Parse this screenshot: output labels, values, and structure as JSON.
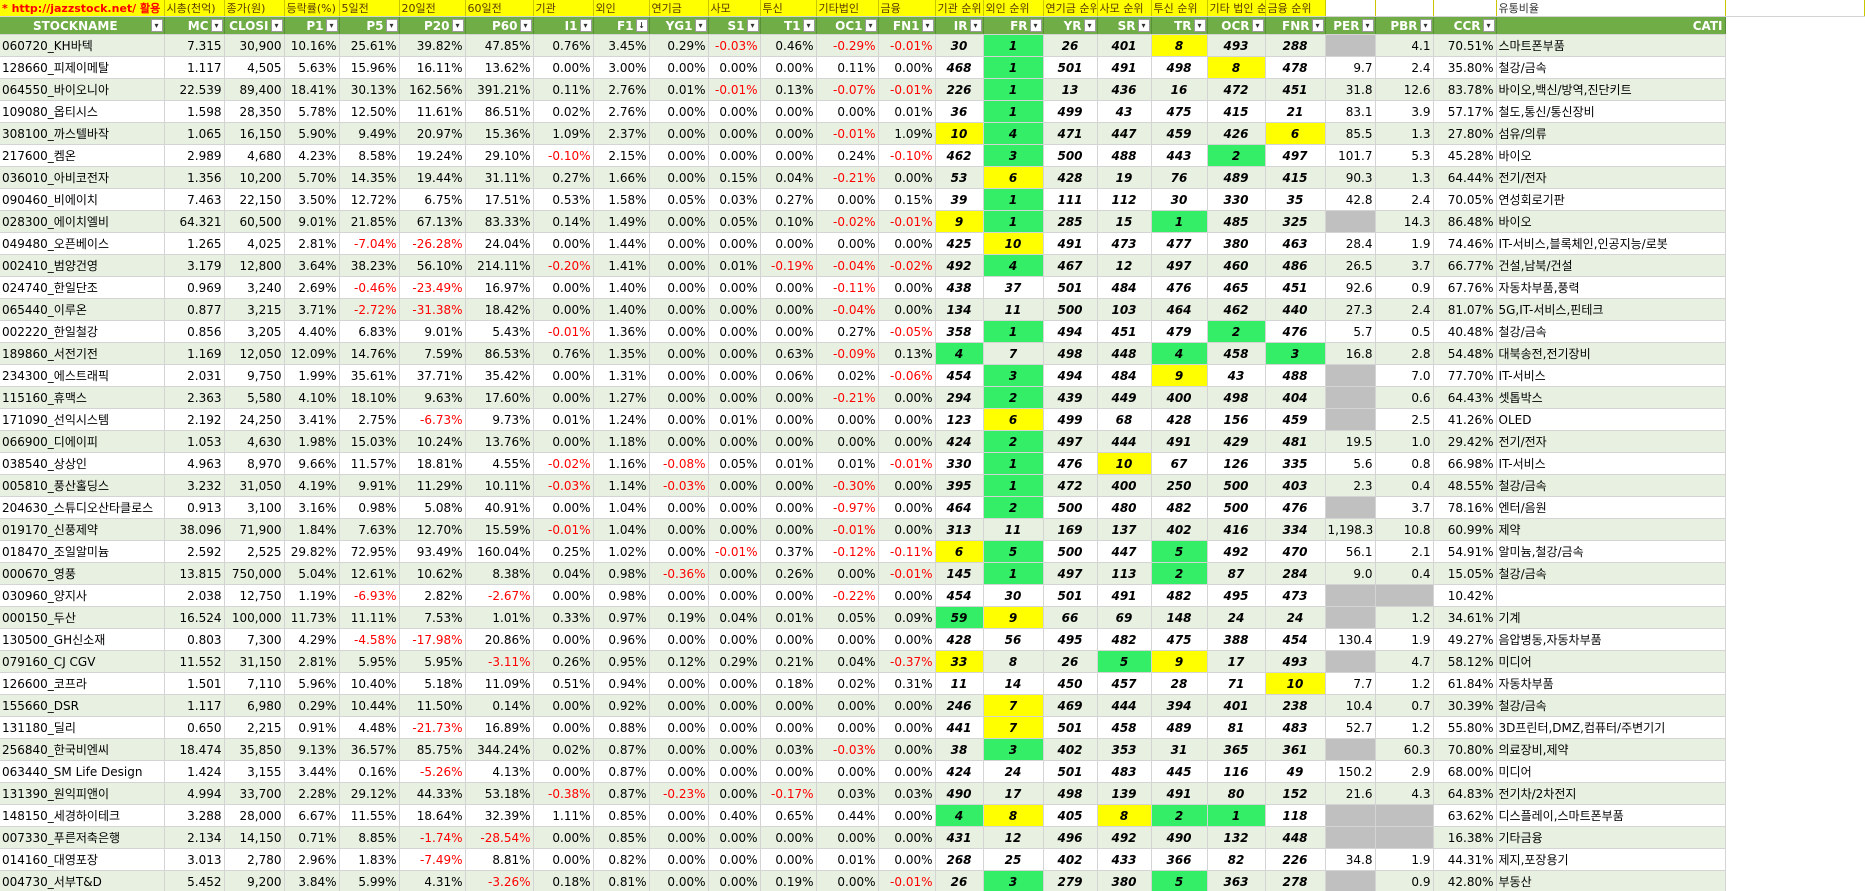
{
  "top_labels": [
    "* http://jazzstock.net/ 활용",
    "시총(천억)",
    "종가(원)",
    "등락률(%)",
    "5일전",
    "20일전",
    "60일전",
    "기관",
    "외인",
    "연기금",
    "사모",
    "투신",
    "기타법인",
    "금융",
    "기관 순위",
    "외인 순위",
    "연기금 순위",
    "사모 순위",
    "투신 순위",
    "기타 법인 순위",
    "금융 순위",
    "",
    "",
    "",
    "유통비율",
    ""
  ],
  "headers": [
    "STOCKNAME",
    "MC",
    "CLOSE",
    "P1",
    "P5",
    "P20",
    "P60",
    "I1",
    "F1",
    "YG1",
    "S1",
    "T1",
    "OC1",
    "FN1",
    "IR",
    "FR",
    "YR",
    "SR",
    "TR",
    "OCR",
    "FNR",
    "PER",
    "PBR",
    "CCR",
    "CATEGORY"
  ],
  "header_visible": [
    "STOCKNAME",
    "MC",
    "CLOSI",
    "P1",
    "P5",
    "P20",
    "P60",
    "I1",
    "F1",
    "YG1",
    "S1",
    "T1",
    "OC1",
    "FN1",
    "IR",
    "FR",
    "YR",
    "SR",
    "TR",
    "OCR",
    "FNR",
    "PER",
    "PBR",
    "CCR",
    "CATI"
  ],
  "sort_indicator": "↓",
  "dropdown_glyph": "▾",
  "colors": {
    "header_green": "#70ad47",
    "band": "#e8f1e1",
    "yellow": "#ffff00",
    "green": "#33ee66",
    "gray": "#c0c0c0",
    "red": "#ff0000"
  },
  "rows": [
    [
      "060720_KH바텍",
      "7.315",
      "30,900",
      "10.16%",
      "25.61%",
      "39.82%",
      "47.85%",
      "0.76%",
      "3.45%",
      "0.29%",
      "-0.03%",
      "0.46%",
      "-0.29%",
      "-0.01%",
      "30",
      "1",
      "26",
      "401",
      "8",
      "493",
      "288",
      "",
      "4.1",
      "70.51%",
      "스마트폰부품"
    ],
    [
      "128660_피제이메탈",
      "1.117",
      "4,505",
      "5.63%",
      "15.96%",
      "16.11%",
      "13.62%",
      "0.00%",
      "3.00%",
      "0.00%",
      "0.00%",
      "0.00%",
      "0.11%",
      "0.00%",
      "468",
      "1",
      "501",
      "491",
      "498",
      "8",
      "478",
      "9.7",
      "2.4",
      "35.80%",
      "철강/금속"
    ],
    [
      "064550_바이오니아",
      "22.539",
      "89,400",
      "18.41%",
      "30.13%",
      "162.56%",
      "391.21%",
      "0.11%",
      "2.76%",
      "0.01%",
      "-0.01%",
      "0.13%",
      "-0.07%",
      "-0.01%",
      "226",
      "1",
      "13",
      "436",
      "16",
      "472",
      "451",
      "31.8",
      "12.6",
      "83.78%",
      "바이오,백신/방역,진단키트"
    ],
    [
      "109080_옵티시스",
      "1.598",
      "28,350",
      "5.78%",
      "12.50%",
      "11.61%",
      "86.51%",
      "0.02%",
      "2.76%",
      "0.00%",
      "0.00%",
      "0.00%",
      "0.00%",
      "0.01%",
      "36",
      "1",
      "499",
      "43",
      "475",
      "415",
      "21",
      "83.1",
      "3.9",
      "57.17%",
      "철도,통신/통신장비"
    ],
    [
      "308100_까스텔바작",
      "1.065",
      "16,150",
      "5.90%",
      "9.49%",
      "20.97%",
      "15.36%",
      "1.09%",
      "2.37%",
      "0.00%",
      "0.00%",
      "0.00%",
      "-0.01%",
      "1.09%",
      "10",
      "4",
      "471",
      "447",
      "459",
      "426",
      "6",
      "85.5",
      "1.3",
      "27.80%",
      "섬유/의류"
    ],
    [
      "217600_켐온",
      "2.989",
      "4,680",
      "4.23%",
      "8.58%",
      "19.24%",
      "29.10%",
      "-0.10%",
      "2.15%",
      "0.00%",
      "0.00%",
      "0.00%",
      "0.24%",
      "-0.10%",
      "462",
      "3",
      "500",
      "488",
      "443",
      "2",
      "497",
      "101.7",
      "5.3",
      "45.28%",
      "바이오"
    ],
    [
      "036010_아비코전자",
      "1.356",
      "10,200",
      "5.70%",
      "14.35%",
      "19.44%",
      "31.11%",
      "0.27%",
      "1.66%",
      "0.00%",
      "0.15%",
      "0.04%",
      "-0.21%",
      "0.00%",
      "53",
      "6",
      "428",
      "19",
      "76",
      "489",
      "415",
      "90.3",
      "1.3",
      "64.44%",
      "전기/전자"
    ],
    [
      "090460_비에이치",
      "7.463",
      "22,150",
      "3.50%",
      "12.72%",
      "6.75%",
      "17.51%",
      "0.53%",
      "1.58%",
      "0.05%",
      "0.03%",
      "0.27%",
      "0.00%",
      "0.15%",
      "39",
      "1",
      "111",
      "112",
      "30",
      "330",
      "35",
      "42.8",
      "2.4",
      "70.05%",
      "연성회로기판"
    ],
    [
      "028300_에이치엘비",
      "64.321",
      "60,500",
      "9.01%",
      "21.85%",
      "67.13%",
      "83.33%",
      "0.14%",
      "1.49%",
      "0.00%",
      "0.05%",
      "0.10%",
      "-0.02%",
      "-0.01%",
      "9",
      "1",
      "285",
      "15",
      "1",
      "485",
      "325",
      "",
      "14.3",
      "86.48%",
      "바이오"
    ],
    [
      "049480_오픈베이스",
      "1.265",
      "4,025",
      "2.81%",
      "-7.04%",
      "-26.28%",
      "24.04%",
      "0.00%",
      "1.44%",
      "0.00%",
      "0.00%",
      "0.00%",
      "0.00%",
      "0.00%",
      "425",
      "10",
      "491",
      "473",
      "477",
      "380",
      "463",
      "28.4",
      "1.9",
      "74.46%",
      "IT-서비스,블록체인,인공지능/로봇"
    ],
    [
      "002410_범양건영",
      "3.179",
      "12,800",
      "3.64%",
      "38.23%",
      "56.10%",
      "214.11%",
      "-0.20%",
      "1.41%",
      "0.00%",
      "0.01%",
      "-0.19%",
      "-0.04%",
      "-0.02%",
      "492",
      "4",
      "467",
      "12",
      "497",
      "460",
      "486",
      "26.5",
      "3.7",
      "66.77%",
      "건설,남북/건설"
    ],
    [
      "024740_한일단조",
      "0.969",
      "3,240",
      "2.69%",
      "-0.46%",
      "-23.49%",
      "16.97%",
      "0.00%",
      "1.40%",
      "0.00%",
      "0.00%",
      "0.00%",
      "-0.11%",
      "0.00%",
      "438",
      "37",
      "501",
      "484",
      "476",
      "465",
      "451",
      "92.6",
      "0.9",
      "67.76%",
      "자동차부품,풍력"
    ],
    [
      "065440_이루온",
      "0.877",
      "3,215",
      "3.71%",
      "-2.72%",
      "-31.38%",
      "18.42%",
      "0.00%",
      "1.40%",
      "0.00%",
      "0.00%",
      "0.00%",
      "-0.04%",
      "0.00%",
      "134",
      "11",
      "500",
      "103",
      "464",
      "462",
      "440",
      "27.3",
      "2.4",
      "81.07%",
      "5G,IT-서비스,핀테크"
    ],
    [
      "002220_한일철강",
      "0.856",
      "3,205",
      "4.40%",
      "6.83%",
      "9.01%",
      "5.43%",
      "-0.01%",
      "1.36%",
      "0.00%",
      "0.00%",
      "0.00%",
      "0.27%",
      "-0.05%",
      "358",
      "1",
      "494",
      "451",
      "479",
      "2",
      "476",
      "5.7",
      "0.5",
      "40.48%",
      "철강/금속"
    ],
    [
      "189860_서전기전",
      "1.169",
      "12,050",
      "12.09%",
      "14.76%",
      "7.59%",
      "86.53%",
      "0.76%",
      "1.35%",
      "0.00%",
      "0.00%",
      "0.63%",
      "-0.09%",
      "0.13%",
      "4",
      "7",
      "498",
      "448",
      "4",
      "458",
      "3",
      "16.8",
      "2.8",
      "54.48%",
      "대북송전,전기장비"
    ],
    [
      "234300_에스트래픽",
      "2.031",
      "9,750",
      "1.99%",
      "35.61%",
      "37.71%",
      "35.42%",
      "0.00%",
      "1.31%",
      "0.00%",
      "0.00%",
      "0.06%",
      "0.02%",
      "-0.06%",
      "454",
      "3",
      "494",
      "484",
      "9",
      "43",
      "488",
      "",
      "7.0",
      "77.70%",
      "IT-서비스"
    ],
    [
      "115160_휴맥스",
      "2.363",
      "5,580",
      "4.10%",
      "18.10%",
      "9.63%",
      "17.60%",
      "0.00%",
      "1.27%",
      "0.00%",
      "0.00%",
      "0.00%",
      "-0.21%",
      "0.00%",
      "294",
      "2",
      "439",
      "449",
      "400",
      "498",
      "404",
      "",
      "0.6",
      "64.43%",
      "셋톱박스"
    ],
    [
      "171090_선익시스템",
      "2.192",
      "24,250",
      "3.41%",
      "2.75%",
      "-6.73%",
      "9.73%",
      "0.01%",
      "1.24%",
      "0.00%",
      "0.01%",
      "0.00%",
      "0.00%",
      "0.00%",
      "123",
      "6",
      "499",
      "68",
      "428",
      "156",
      "459",
      "",
      "2.5",
      "41.26%",
      "OLED"
    ],
    [
      "066900_디에이피",
      "1.053",
      "4,630",
      "1.98%",
      "15.03%",
      "10.24%",
      "13.76%",
      "0.00%",
      "1.18%",
      "0.00%",
      "0.00%",
      "0.00%",
      "0.00%",
      "0.00%",
      "424",
      "2",
      "497",
      "444",
      "491",
      "429",
      "481",
      "19.5",
      "1.0",
      "29.42%",
      "전기/전자"
    ],
    [
      "038540_상상인",
      "4.963",
      "8,970",
      "9.66%",
      "11.57%",
      "18.81%",
      "4.55%",
      "-0.02%",
      "1.16%",
      "-0.08%",
      "0.05%",
      "0.01%",
      "0.01%",
      "-0.01%",
      "330",
      "1",
      "476",
      "10",
      "67",
      "126",
      "335",
      "5.6",
      "0.8",
      "66.98%",
      "IT-서비스"
    ],
    [
      "005810_풍산홀딩스",
      "3.232",
      "31,050",
      "4.19%",
      "9.91%",
      "11.29%",
      "10.11%",
      "-0.03%",
      "1.14%",
      "-0.03%",
      "0.00%",
      "0.00%",
      "-0.30%",
      "0.00%",
      "395",
      "1",
      "472",
      "400",
      "250",
      "500",
      "403",
      "2.3",
      "0.4",
      "48.55%",
      "철강/금속"
    ],
    [
      "204630_스튜디오산타클로스",
      "0.913",
      "3,100",
      "3.16%",
      "0.98%",
      "5.08%",
      "40.91%",
      "0.00%",
      "1.04%",
      "0.00%",
      "0.00%",
      "0.00%",
      "-0.97%",
      "0.00%",
      "464",
      "2",
      "500",
      "480",
      "482",
      "500",
      "476",
      "",
      "3.7",
      "78.16%",
      "엔터/음원"
    ],
    [
      "019170_신풍제약",
      "38.096",
      "71,900",
      "1.84%",
      "7.63%",
      "12.70%",
      "15.59%",
      "-0.01%",
      "1.04%",
      "0.00%",
      "0.00%",
      "0.00%",
      "-0.01%",
      "0.00%",
      "313",
      "11",
      "169",
      "137",
      "402",
      "416",
      "334",
      "1,198.3",
      "10.8",
      "60.99%",
      "제약"
    ],
    [
      "018470_조일알미늄",
      "2.592",
      "2,525",
      "29.82%",
      "72.95%",
      "93.49%",
      "160.04%",
      "0.25%",
      "1.02%",
      "0.00%",
      "-0.01%",
      "0.37%",
      "-0.12%",
      "-0.11%",
      "6",
      "5",
      "500",
      "447",
      "5",
      "492",
      "470",
      "56.1",
      "2.1",
      "54.91%",
      "알미늄,철강/금속"
    ],
    [
      "000670_영풍",
      "13.815",
      "750,000",
      "5.04%",
      "12.61%",
      "10.62%",
      "8.38%",
      "0.04%",
      "0.98%",
      "-0.36%",
      "0.00%",
      "0.26%",
      "0.00%",
      "-0.01%",
      "145",
      "1",
      "497",
      "113",
      "2",
      "87",
      "284",
      "9.0",
      "0.4",
      "15.05%",
      "철강/금속"
    ],
    [
      "030960_양지사",
      "2.038",
      "12,750",
      "1.19%",
      "-6.93%",
      "2.82%",
      "-2.67%",
      "0.00%",
      "0.98%",
      "0.00%",
      "0.00%",
      "0.00%",
      "-0.22%",
      "0.00%",
      "454",
      "30",
      "501",
      "491",
      "482",
      "495",
      "473",
      "",
      "",
      "10.42%",
      ""
    ],
    [
      "000150_두산",
      "16.524",
      "100,000",
      "11.73%",
      "11.11%",
      "7.53%",
      "1.01%",
      "0.33%",
      "0.97%",
      "0.19%",
      "0.04%",
      "0.01%",
      "0.05%",
      "0.09%",
      "59",
      "9",
      "66",
      "69",
      "148",
      "24",
      "24",
      "",
      "1.2",
      "34.61%",
      "기계"
    ],
    [
      "130500_GH신소재",
      "0.803",
      "7,300",
      "4.29%",
      "-4.58%",
      "-17.98%",
      "20.86%",
      "0.00%",
      "0.96%",
      "0.00%",
      "0.00%",
      "0.00%",
      "0.00%",
      "0.00%",
      "428",
      "56",
      "495",
      "482",
      "475",
      "388",
      "454",
      "130.4",
      "1.9",
      "49.27%",
      "음압병동,자동차부품"
    ],
    [
      "079160_CJ CGV",
      "11.552",
      "31,150",
      "2.81%",
      "5.95%",
      "5.95%",
      "-3.11%",
      "0.26%",
      "0.95%",
      "0.12%",
      "0.29%",
      "0.21%",
      "0.04%",
      "-0.37%",
      "33",
      "8",
      "26",
      "5",
      "9",
      "17",
      "493",
      "",
      "4.7",
      "58.12%",
      "미디어"
    ],
    [
      "126600_코프라",
      "1.501",
      "7,110",
      "5.96%",
      "10.40%",
      "5.18%",
      "11.09%",
      "0.51%",
      "0.94%",
      "0.00%",
      "0.00%",
      "0.18%",
      "0.02%",
      "0.31%",
      "11",
      "14",
      "450",
      "457",
      "28",
      "71",
      "10",
      "7.7",
      "1.2",
      "61.84%",
      "자동차부품"
    ],
    [
      "155660_DSR",
      "1.117",
      "6,980",
      "0.29%",
      "10.44%",
      "11.50%",
      "0.14%",
      "0.00%",
      "0.92%",
      "0.00%",
      "0.00%",
      "0.00%",
      "0.00%",
      "0.00%",
      "246",
      "7",
      "469",
      "444",
      "394",
      "401",
      "238",
      "10.4",
      "0.7",
      "30.39%",
      "철강/금속"
    ],
    [
      "131180_딜리",
      "0.650",
      "2,215",
      "0.91%",
      "4.48%",
      "-21.73%",
      "16.89%",
      "0.00%",
      "0.88%",
      "0.00%",
      "0.00%",
      "0.00%",
      "0.00%",
      "0.00%",
      "441",
      "7",
      "501",
      "458",
      "489",
      "81",
      "483",
      "52.7",
      "1.2",
      "55.80%",
      "3D프린터,DMZ,컴퓨터/주변기기"
    ],
    [
      "256840_한국비엔씨",
      "18.474",
      "35,850",
      "9.13%",
      "36.57%",
      "85.75%",
      "344.24%",
      "0.02%",
      "0.87%",
      "0.00%",
      "0.00%",
      "0.03%",
      "-0.03%",
      "0.00%",
      "38",
      "3",
      "402",
      "353",
      "31",
      "365",
      "361",
      "",
      "60.3",
      "70.80%",
      "의료장비,제약"
    ],
    [
      "063440_SM Life Design",
      "1.424",
      "3,155",
      "3.44%",
      "0.16%",
      "-5.26%",
      "4.13%",
      "0.00%",
      "0.87%",
      "0.00%",
      "0.00%",
      "0.00%",
      "0.00%",
      "0.00%",
      "424",
      "24",
      "501",
      "483",
      "445",
      "116",
      "49",
      "150.2",
      "2.9",
      "68.00%",
      "미디어"
    ],
    [
      "131390_원익피앤이",
      "4.994",
      "33,700",
      "2.28%",
      "29.12%",
      "44.33%",
      "53.18%",
      "-0.38%",
      "0.87%",
      "-0.23%",
      "0.00%",
      "-0.17%",
      "0.03%",
      "0.03%",
      "490",
      "17",
      "498",
      "139",
      "491",
      "80",
      "152",
      "21.6",
      "4.3",
      "64.83%",
      "전기차/2차전지"
    ],
    [
      "148150_세경하이테크",
      "3.288",
      "28,000",
      "6.67%",
      "11.55%",
      "18.64%",
      "32.39%",
      "1.11%",
      "0.85%",
      "0.00%",
      "0.40%",
      "0.65%",
      "0.44%",
      "0.00%",
      "4",
      "8",
      "405",
      "8",
      "2",
      "1",
      "118",
      "",
      "",
      "63.62%",
      "디스플레이,스마트폰부품"
    ],
    [
      "007330_푸른저축은행",
      "2.134",
      "14,150",
      "0.71%",
      "8.85%",
      "-1.74%",
      "-28.54%",
      "0.00%",
      "0.85%",
      "0.00%",
      "0.00%",
      "0.00%",
      "0.00%",
      "0.00%",
      "431",
      "12",
      "496",
      "492",
      "490",
      "132",
      "448",
      "",
      "",
      "16.38%",
      "기타금융"
    ],
    [
      "014160_대영포장",
      "3.013",
      "2,780",
      "2.96%",
      "1.83%",
      "-7.49%",
      "8.81%",
      "0.00%",
      "0.82%",
      "0.00%",
      "0.00%",
      "0.00%",
      "0.01%",
      "0.00%",
      "268",
      "25",
      "402",
      "433",
      "366",
      "82",
      "226",
      "34.8",
      "1.9",
      "44.31%",
      "제지,포장용기"
    ],
    [
      "004730_서부T&D",
      "5.452",
      "9,200",
      "3.84%",
      "5.99%",
      "4.31%",
      "-3.26%",
      "0.18%",
      "0.81%",
      "0.00%",
      "0.00%",
      "0.19%",
      "0.00%",
      "-0.01%",
      "26",
      "3",
      "279",
      "380",
      "5",
      "363",
      "278",
      "",
      "0.9",
      "42.80%",
      "부동산"
    ]
  ],
  "highlights": {
    "yellow": [
      [
        0,
        18
      ],
      [
        1,
        19
      ],
      [
        4,
        14
      ],
      [
        4,
        20
      ],
      [
        6,
        15
      ],
      [
        8,
        14
      ],
      [
        9,
        15
      ],
      [
        14,
        14
      ],
      [
        15,
        18
      ],
      [
        17,
        15
      ],
      [
        19,
        17
      ],
      [
        23,
        14
      ],
      [
        26,
        15
      ],
      [
        28,
        14
      ],
      [
        28,
        18
      ],
      [
        29,
        20
      ],
      [
        30,
        15
      ],
      [
        31,
        15
      ],
      [
        35,
        15
      ],
      [
        35,
        17
      ]
    ],
    "green": [
      [
        0,
        15
      ],
      [
        1,
        15
      ],
      [
        2,
        15
      ],
      [
        3,
        15
      ],
      [
        4,
        15
      ],
      [
        5,
        15
      ],
      [
        5,
        19
      ],
      [
        7,
        15
      ],
      [
        8,
        15
      ],
      [
        8,
        18
      ],
      [
        10,
        15
      ],
      [
        13,
        15
      ],
      [
        13,
        19
      ],
      [
        14,
        14
      ],
      [
        14,
        18
      ],
      [
        14,
        20
      ],
      [
        15,
        15
      ],
      [
        16,
        15
      ],
      [
        18,
        15
      ],
      [
        19,
        15
      ],
      [
        20,
        15
      ],
      [
        21,
        15
      ],
      [
        23,
        15
      ],
      [
        23,
        18
      ],
      [
        24,
        15
      ],
      [
        24,
        18
      ],
      [
        26,
        14
      ],
      [
        28,
        17
      ],
      [
        32,
        15
      ],
      [
        35,
        14
      ],
      [
        35,
        18
      ],
      [
        35,
        19
      ],
      [
        38,
        15
      ],
      [
        38,
        18
      ]
    ],
    "gray": [
      [
        0,
        21
      ],
      [
        8,
        21
      ],
      [
        15,
        21
      ],
      [
        16,
        21
      ],
      [
        17,
        21
      ],
      [
        21,
        21
      ],
      [
        25,
        21
      ],
      [
        25,
        22
      ],
      [
        26,
        21
      ],
      [
        28,
        21
      ],
      [
        32,
        21
      ],
      [
        35,
        21
      ],
      [
        35,
        22
      ],
      [
        36,
        21
      ],
      [
        36,
        22
      ],
      [
        38,
        21
      ]
    ]
  }
}
